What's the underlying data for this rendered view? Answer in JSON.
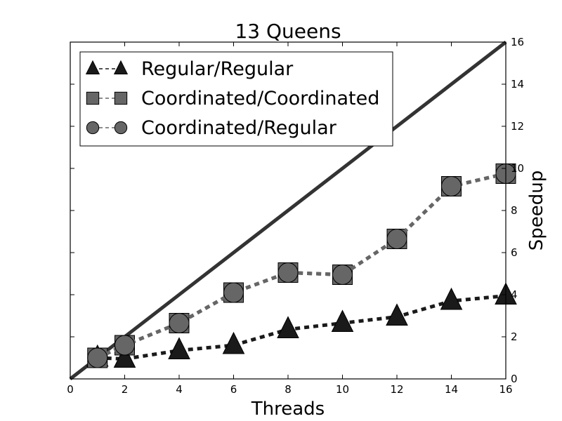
{
  "chart_data": {
    "type": "line",
    "title": "13 Queens",
    "xlabel": "Threads",
    "ylabel": "Speedup",
    "xlim": [
      0,
      16
    ],
    "ylim": [
      0,
      16
    ],
    "xticks": [
      0,
      2,
      4,
      6,
      8,
      10,
      12,
      14,
      16
    ],
    "yticks": [
      0,
      2,
      4,
      6,
      8,
      10,
      12,
      14,
      16
    ],
    "y_axis_side": "right",
    "grid": false,
    "legend_position": "top-left",
    "ideal_line": {
      "x": [
        0,
        16
      ],
      "y": [
        0,
        16
      ],
      "color": "#333333"
    },
    "series": [
      {
        "name": "Regular/Regular",
        "marker": "triangle",
        "color": "#1a1a1a",
        "x": [
          1,
          2,
          4,
          6,
          8,
          10,
          12,
          14,
          16
        ],
        "y": [
          1.0,
          0.95,
          1.35,
          1.6,
          2.35,
          2.65,
          2.95,
          3.7,
          3.95
        ]
      },
      {
        "name": "Coordinated/Coordinated",
        "marker": "square",
        "color": "#666666",
        "x": [
          1,
          2,
          4,
          6,
          8,
          10,
          12,
          14,
          16
        ],
        "y": [
          1.0,
          1.6,
          2.65,
          4.1,
          5.05,
          4.95,
          6.65,
          9.15,
          9.75
        ]
      },
      {
        "name": "Coordinated/Regular",
        "marker": "circle",
        "color": "#666666",
        "x": [
          1,
          2,
          4,
          6,
          8,
          10,
          12,
          14,
          16
        ],
        "y": [
          1.0,
          1.6,
          2.65,
          4.1,
          5.05,
          4.95,
          6.65,
          9.15,
          9.75
        ]
      }
    ]
  }
}
